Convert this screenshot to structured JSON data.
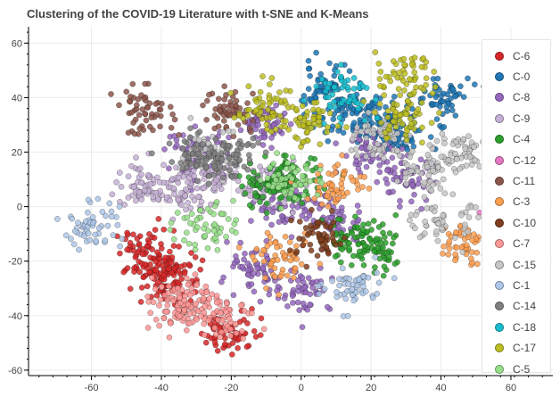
{
  "chart_data": {
    "type": "scatter",
    "title": "Clustering of the COVID-19 Literature with t-SNE and K-Means",
    "xlabel": "",
    "ylabel": "",
    "xlim": [
      -78,
      72
    ],
    "ylim": [
      -62,
      66
    ],
    "x_ticks": [
      -60,
      -40,
      -20,
      0,
      20,
      40,
      60
    ],
    "y_ticks": [
      -60,
      -40,
      -20,
      0,
      20,
      40,
      60
    ],
    "grid": true,
    "legend_position": "top-right",
    "series": [
      {
        "name": "C-6",
        "color": "#d62728",
        "centers": [
          [
            -45,
            -17
          ],
          [
            -40,
            -28
          ],
          [
            -36,
            -22
          ],
          [
            -20,
            -46
          ]
        ]
      },
      {
        "name": "C-0",
        "color": "#1f77b4",
        "centers": [
          [
            12,
            34
          ],
          [
            22,
            32
          ],
          [
            27,
            26
          ],
          [
            40,
            40
          ],
          [
            6,
            44
          ]
        ]
      },
      {
        "name": "C-8",
        "color": "#9467bd",
        "centers": [
          [
            -5,
            0
          ],
          [
            10,
            -5
          ],
          [
            -15,
            -25
          ],
          [
            30,
            10
          ],
          [
            -30,
            20
          ],
          [
            20,
            20
          ],
          [
            -10,
            30
          ],
          [
            0,
            -30
          ]
        ]
      },
      {
        "name": "C-9",
        "color": "#c5b0d5",
        "centers": [
          [
            -45,
            8
          ],
          [
            -35,
            5
          ],
          [
            -25,
            10
          ],
          [
            -10,
            8
          ]
        ]
      },
      {
        "name": "C-4",
        "color": "#2ca02c",
        "centers": [
          [
            -10,
            8
          ],
          [
            -3,
            10
          ],
          [
            22,
            -17
          ],
          [
            15,
            -12
          ]
        ]
      },
      {
        "name": "C-12",
        "color": "#e377c2",
        "centers": [
          [
            60,
            5
          ]
        ]
      },
      {
        "name": "C-11",
        "color": "#8c564b",
        "centers": [
          [
            -45,
            35
          ],
          [
            -20,
            35
          ]
        ]
      },
      {
        "name": "C-3",
        "color": "#ff9f50",
        "centers": [
          [
            10,
            8
          ],
          [
            48,
            -13
          ],
          [
            -5,
            -20
          ]
        ]
      },
      {
        "name": "C-10",
        "color": "#7f3f1f",
        "centers": [
          [
            5,
            -12
          ]
        ]
      },
      {
        "name": "C-7",
        "color": "#ff9896",
        "centers": [
          [
            -30,
            -35
          ],
          [
            -38,
            -36
          ],
          [
            -22,
            -40
          ]
        ]
      },
      {
        "name": "C-15",
        "color": "#c7c7c7",
        "centers": [
          [
            35,
            15
          ],
          [
            45,
            20
          ],
          [
            22,
            25
          ],
          [
            -25,
            20
          ],
          [
            40,
            -5
          ]
        ]
      },
      {
        "name": "C-1",
        "color": "#aec7e8",
        "centers": [
          [
            -60,
            -7
          ],
          [
            15,
            -30
          ]
        ]
      },
      {
        "name": "C-14",
        "color": "#7f7f7f",
        "centers": [
          [
            -30,
            18
          ],
          [
            -20,
            18
          ]
        ]
      },
      {
        "name": "C-18",
        "color": "#17becf",
        "centers": [
          [
            12,
            42
          ]
        ]
      },
      {
        "name": "C-17",
        "color": "#bcbd22",
        "centers": [
          [
            2,
            30
          ],
          [
            28,
            33
          ],
          [
            30,
            47
          ],
          [
            -10,
            37
          ]
        ]
      },
      {
        "name": "C-5",
        "color": "#98df8a",
        "centers": [
          [
            -28,
            -7
          ],
          [
            -2,
            10
          ]
        ]
      }
    ]
  }
}
